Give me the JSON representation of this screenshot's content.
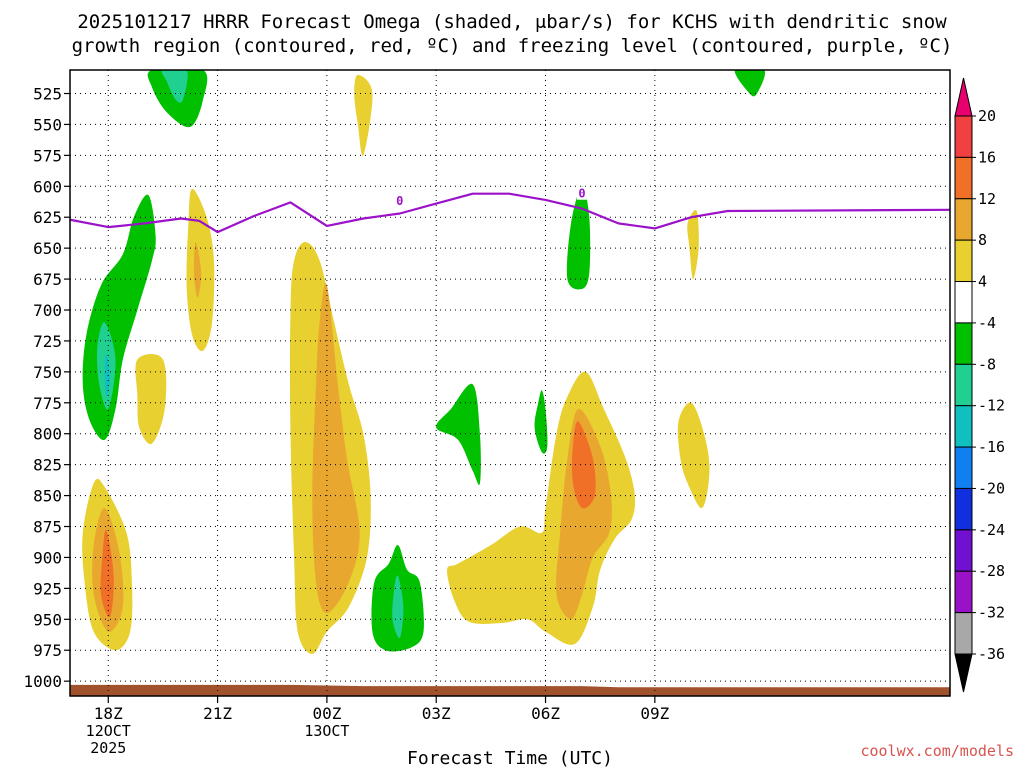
{
  "chart_data": {
    "type": "time-height contour",
    "title_line1": "2025101217 HRRR Forecast Omega (shaded, μbar/s) for KCHS with dendritic snow",
    "title_line2": "growth region (contoured, red, ºC) and freezing level (contoured, purple, ºC)",
    "xlabel": "Forecast Time (UTC)",
    "credit": "coolwx.com/models",
    "x_range_hours": [
      16.95,
      41.1
    ],
    "y_range_mb": [
      506,
      1012
    ],
    "y_ticks": [
      525,
      550,
      575,
      600,
      625,
      650,
      675,
      700,
      725,
      750,
      775,
      800,
      825,
      850,
      875,
      900,
      925,
      950,
      975,
      1000
    ],
    "x_ticks": [
      {
        "hour": 18,
        "label": "18Z",
        "date1": "12OCT",
        "date2": "2025"
      },
      {
        "hour": 21,
        "label": "21Z",
        "date1": "",
        "date2": ""
      },
      {
        "hour": 24,
        "label": "00Z",
        "date1": "13OCT",
        "date2": ""
      },
      {
        "hour": 27,
        "label": "03Z",
        "date1": "",
        "date2": ""
      },
      {
        "hour": 30,
        "label": "06Z",
        "date1": "",
        "date2": ""
      },
      {
        "hour": 33,
        "label": "09Z",
        "date1": "",
        "date2": ""
      }
    ],
    "colorbar": {
      "labels": [
        "20",
        "16",
        "12",
        "8",
        "4",
        "-4",
        "-8",
        "-12",
        "-16",
        "-20",
        "-24",
        "-28",
        "-32",
        "-36"
      ],
      "colors": [
        "#e8006e",
        "#f04040",
        "#f07028",
        "#e8a830",
        "#e8d030",
        "#ffffff",
        "#00c000",
        "#20d090",
        "#10c0c0",
        "#1080f0",
        "#1030e0",
        "#7010d0",
        "#9a12c8",
        "#a8a8a8",
        "#000000"
      ]
    },
    "freezing_level": {
      "label": "0",
      "label_points": [
        [
          26.0,
          612
        ],
        [
          31.0,
          606
        ]
      ],
      "points": [
        [
          16.95,
          627
        ],
        [
          18.0,
          633
        ],
        [
          19.0,
          630
        ],
        [
          20.0,
          626
        ],
        [
          20.5,
          628
        ],
        [
          21.0,
          637
        ],
        [
          22.0,
          624
        ],
        [
          23.0,
          613
        ],
        [
          24.0,
          632
        ],
        [
          25.0,
          626
        ],
        [
          26.0,
          622
        ],
        [
          27.0,
          614
        ],
        [
          28.0,
          606
        ],
        [
          29.0,
          606
        ],
        [
          30.0,
          611
        ],
        [
          31.0,
          618
        ],
        [
          32.0,
          630
        ],
        [
          33.0,
          634
        ],
        [
          34.0,
          625
        ],
        [
          35.0,
          620
        ],
        [
          41.1,
          619
        ]
      ]
    },
    "omega_regions": [
      {
        "value": -6,
        "color": "#00c000",
        "points": [
          [
            19.2,
            506
          ],
          [
            20.6,
            506
          ],
          [
            20.6,
            530
          ],
          [
            20.25,
            552
          ],
          [
            19.6,
            540
          ],
          [
            19.2,
            520
          ]
        ]
      },
      {
        "value": -10,
        "color": "#20d090",
        "points": [
          [
            19.5,
            506
          ],
          [
            20.15,
            506
          ],
          [
            20.05,
            530
          ],
          [
            19.85,
            530
          ],
          [
            19.6,
            515
          ]
        ]
      },
      {
        "value": -6,
        "color": "#00c000",
        "points": [
          [
            35.2,
            506
          ],
          [
            36.0,
            506
          ],
          [
            35.8,
            525
          ],
          [
            35.6,
            525
          ]
        ]
      },
      {
        "value": 6,
        "color": "#e8d030",
        "points": [
          [
            24.85,
            510
          ],
          [
            25.25,
            525
          ],
          [
            25.0,
            575
          ],
          [
            24.85,
            550
          ],
          [
            24.75,
            525
          ]
        ]
      },
      {
        "value": -6,
        "color": "#00c000",
        "points": [
          [
            18.7,
            625
          ],
          [
            19.1,
            607
          ],
          [
            19.3,
            640
          ],
          [
            19.2,
            660
          ],
          [
            18.8,
            700
          ],
          [
            18.4,
            740
          ],
          [
            18.2,
            780
          ],
          [
            17.9,
            805
          ],
          [
            17.5,
            790
          ],
          [
            17.3,
            760
          ],
          [
            17.4,
            720
          ],
          [
            17.8,
            680
          ],
          [
            18.4,
            655
          ]
        ]
      },
      {
        "value": -10,
        "color": "#20d090",
        "points": [
          [
            17.9,
            710
          ],
          [
            18.2,
            740
          ],
          [
            18.0,
            780
          ],
          [
            17.75,
            760
          ],
          [
            17.7,
            730
          ]
        ]
      },
      {
        "value": -14,
        "color": "#10c0c0",
        "points": [
          [
            17.95,
            735
          ],
          [
            18.05,
            755
          ],
          [
            17.95,
            770
          ],
          [
            17.9,
            752
          ]
        ]
      },
      {
        "value": 6,
        "color": "#e8d030",
        "points": [
          [
            20.3,
            602
          ],
          [
            20.7,
            625
          ],
          [
            20.9,
            660
          ],
          [
            20.85,
            710
          ],
          [
            20.6,
            733
          ],
          [
            20.3,
            720
          ],
          [
            20.15,
            680
          ],
          [
            20.2,
            630
          ]
        ]
      },
      {
        "value": 10,
        "color": "#e8a830",
        "points": [
          [
            20.4,
            645
          ],
          [
            20.55,
            670
          ],
          [
            20.45,
            690
          ],
          [
            20.35,
            670
          ]
        ]
      },
      {
        "value": 6,
        "color": "#e8d030",
        "points": [
          [
            18.8,
            740
          ],
          [
            19.5,
            740
          ],
          [
            19.55,
            780
          ],
          [
            19.2,
            808
          ],
          [
            18.85,
            795
          ],
          [
            18.8,
            770
          ]
        ]
      },
      {
        "value": 6,
        "color": "#e8d030",
        "points": [
          [
            23.4,
            645
          ],
          [
            23.8,
            660
          ],
          [
            24.2,
            710
          ],
          [
            24.6,
            760
          ],
          [
            25.0,
            800
          ],
          [
            25.2,
            850
          ],
          [
            25.1,
            900
          ],
          [
            24.6,
            940
          ],
          [
            24.0,
            960
          ],
          [
            23.6,
            978
          ],
          [
            23.2,
            960
          ],
          [
            23.1,
            900
          ],
          [
            23.0,
            800
          ],
          [
            23.0,
            700
          ],
          [
            23.1,
            660
          ]
        ]
      },
      {
        "value": 10,
        "color": "#e8a830",
        "points": [
          [
            24.0,
            680
          ],
          [
            24.3,
            760
          ],
          [
            24.55,
            820
          ],
          [
            24.9,
            880
          ],
          [
            24.6,
            920
          ],
          [
            24.0,
            945
          ],
          [
            23.7,
            920
          ],
          [
            23.6,
            850
          ],
          [
            23.7,
            760
          ],
          [
            23.8,
            710
          ]
        ]
      },
      {
        "value": 6,
        "color": "#e8d030",
        "points": [
          [
            17.6,
            840
          ],
          [
            17.9,
            843
          ],
          [
            18.5,
            880
          ],
          [
            18.65,
            920
          ],
          [
            18.6,
            960
          ],
          [
            18.2,
            975
          ],
          [
            17.6,
            960
          ],
          [
            17.35,
            920
          ],
          [
            17.3,
            880
          ]
        ]
      },
      {
        "value": 10,
        "color": "#e8a830",
        "points": [
          [
            17.9,
            860
          ],
          [
            18.3,
            895
          ],
          [
            18.4,
            940
          ],
          [
            18.0,
            960
          ],
          [
            17.6,
            930
          ],
          [
            17.6,
            890
          ]
        ]
      },
      {
        "value": 14,
        "color": "#f07028",
        "points": [
          [
            17.95,
            878
          ],
          [
            18.15,
            915
          ],
          [
            18.05,
            948
          ],
          [
            17.8,
            930
          ],
          [
            17.85,
            895
          ]
        ]
      },
      {
        "value": -6,
        "color": "#00c000",
        "points": [
          [
            28.0,
            760
          ],
          [
            28.2,
            800
          ],
          [
            28.2,
            840
          ],
          [
            28.0,
            830
          ],
          [
            27.6,
            805
          ],
          [
            27.0,
            795
          ],
          [
            27.4,
            780
          ]
        ]
      },
      {
        "value": -6,
        "color": "#00c000",
        "points": [
          [
            29.9,
            765
          ],
          [
            30.0,
            780
          ],
          [
            30.05,
            810
          ],
          [
            29.9,
            815
          ],
          [
            29.7,
            795
          ],
          [
            29.8,
            775
          ]
        ]
      },
      {
        "value": -6,
        "color": "#00c000",
        "points": [
          [
            31.0,
            600
          ],
          [
            31.2,
            625
          ],
          [
            31.2,
            670
          ],
          [
            31.0,
            683
          ],
          [
            30.6,
            675
          ],
          [
            30.7,
            630
          ]
        ]
      },
      {
        "value": 6,
        "color": "#e8d030",
        "points": [
          [
            34.15,
            620
          ],
          [
            34.2,
            650
          ],
          [
            34.05,
            675
          ],
          [
            33.95,
            650
          ],
          [
            33.9,
            630
          ]
        ]
      },
      {
        "value": 6,
        "color": "#e8d030",
        "points": [
          [
            34.0,
            775
          ],
          [
            34.35,
            800
          ],
          [
            34.5,
            830
          ],
          [
            34.3,
            860
          ],
          [
            33.9,
            840
          ],
          [
            33.7,
            820
          ],
          [
            33.65,
            790
          ]
        ]
      },
      {
        "value": -6,
        "color": "#00c000",
        "points": [
          [
            25.95,
            890
          ],
          [
            26.2,
            910
          ],
          [
            26.55,
            920
          ],
          [
            26.65,
            960
          ],
          [
            26.3,
            973
          ],
          [
            25.6,
            975
          ],
          [
            25.25,
            960
          ],
          [
            25.3,
            920
          ],
          [
            25.7,
            905
          ]
        ]
      },
      {
        "value": -12,
        "color": "#20d090",
        "points": [
          [
            25.95,
            915
          ],
          [
            26.1,
            940
          ],
          [
            26.0,
            965
          ],
          [
            25.8,
            950
          ],
          [
            25.85,
            925
          ]
        ]
      },
      {
        "value": 6,
        "color": "#e8d030",
        "points": [
          [
            31.1,
            750
          ],
          [
            31.6,
            780
          ],
          [
            32.2,
            820
          ],
          [
            32.45,
            850
          ],
          [
            32.35,
            870
          ],
          [
            31.9,
            885
          ],
          [
            31.5,
            910
          ],
          [
            31.3,
            940
          ],
          [
            30.8,
            970
          ],
          [
            30.0,
            960
          ],
          [
            29.5,
            950
          ],
          [
            28.8,
            953
          ],
          [
            27.9,
            952
          ],
          [
            27.5,
            935
          ],
          [
            27.3,
            910
          ],
          [
            27.6,
            905
          ],
          [
            28.5,
            890
          ],
          [
            29.3,
            875
          ],
          [
            29.9,
            880
          ],
          [
            30.0,
            860
          ],
          [
            30.3,
            800
          ],
          [
            30.6,
            770
          ]
        ]
      },
      {
        "value": 10,
        "color": "#e8a830",
        "points": [
          [
            30.9,
            780
          ],
          [
            31.5,
            810
          ],
          [
            31.8,
            850
          ],
          [
            31.75,
            880
          ],
          [
            31.3,
            900
          ],
          [
            31.0,
            930
          ],
          [
            30.7,
            950
          ],
          [
            30.3,
            930
          ],
          [
            30.4,
            880
          ],
          [
            30.6,
            820
          ]
        ]
      },
      {
        "value": 14,
        "color": "#f07028",
        "points": [
          [
            30.9,
            790
          ],
          [
            31.3,
            820
          ],
          [
            31.35,
            850
          ],
          [
            31.0,
            860
          ],
          [
            30.75,
            840
          ],
          [
            30.75,
            810
          ]
        ]
      }
    ],
    "ground": {
      "color": "#a0522d",
      "points": [
        [
          16.95,
          1003
        ],
        [
          23.0,
          1003
        ],
        [
          25.0,
          1004
        ],
        [
          31.0,
          1004
        ],
        [
          32.0,
          1005
        ],
        [
          41.1,
          1005
        ]
      ]
    }
  }
}
